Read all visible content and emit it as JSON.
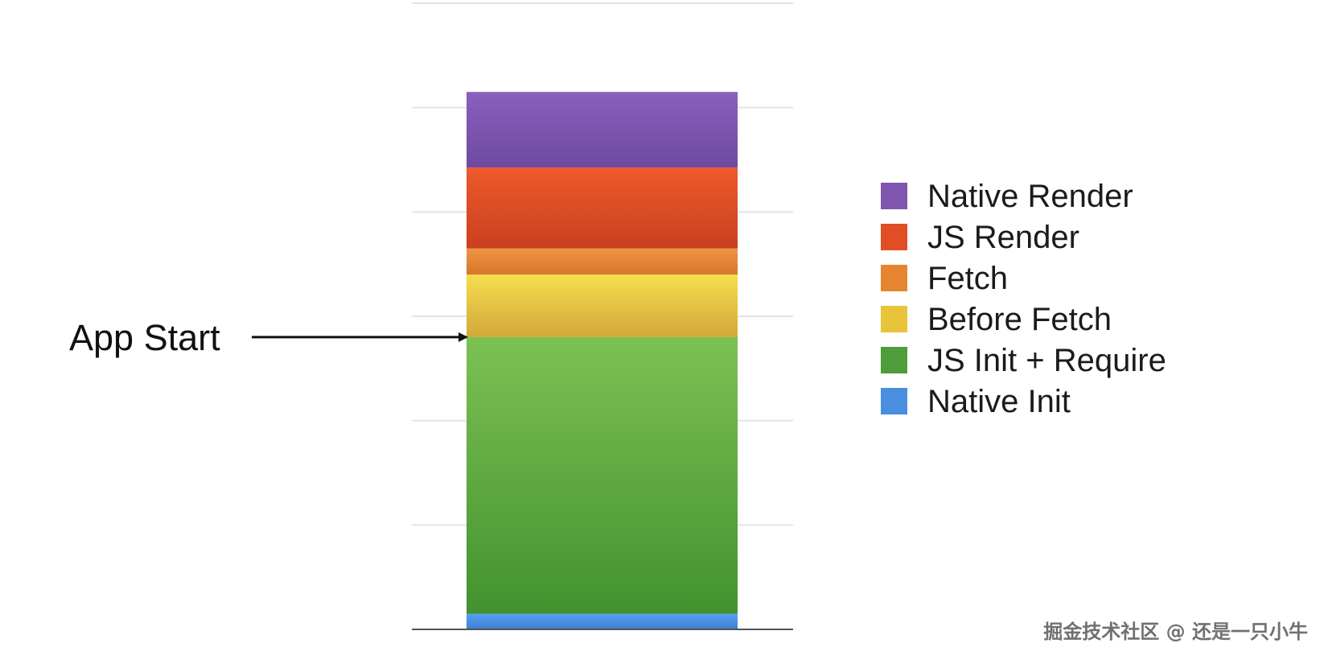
{
  "chart_data": {
    "type": "bar",
    "stacked": true,
    "categories": [
      ""
    ],
    "series": [
      {
        "name": "Native Init",
        "values": [
          3
        ],
        "color": "#4a8ee0"
      },
      {
        "name": "JS Init + Require",
        "values": [
          53
        ],
        "color": "#5aa63e"
      },
      {
        "name": "Before Fetch",
        "values": [
          12
        ],
        "color": "#e8c43a"
      },
      {
        "name": "Fetch",
        "values": [
          5
        ],
        "color": "#e6852f"
      },
      {
        "name": "JS Render",
        "values": [
          15.5
        ],
        "color": "#e04e25"
      },
      {
        "name": "Native Render",
        "values": [
          14.5
        ],
        "color": "#7e56b0"
      }
    ],
    "ylim": [
      0,
      120
    ],
    "grid": true,
    "legend": "right",
    "title": "",
    "xlabel": "",
    "ylabel": "",
    "annotations": [
      {
        "text": "App Start",
        "at_y": 56,
        "type": "arrow"
      }
    ]
  },
  "legend": {
    "items": [
      {
        "label": "Native Render",
        "color": "#7e56b0"
      },
      {
        "label": "JS Render",
        "color": "#e04e25"
      },
      {
        "label": "Fetch",
        "color": "#e6852f"
      },
      {
        "label": "Before Fetch",
        "color": "#e8c43a"
      },
      {
        "label": "JS Init + Require",
        "color": "#4e9c3a"
      },
      {
        "label": "Native Init",
        "color": "#4a8ee0"
      }
    ]
  },
  "annotation": {
    "label": "App Start"
  },
  "watermark": {
    "text": "掘金技术社区 @ 还是一只小牛"
  }
}
